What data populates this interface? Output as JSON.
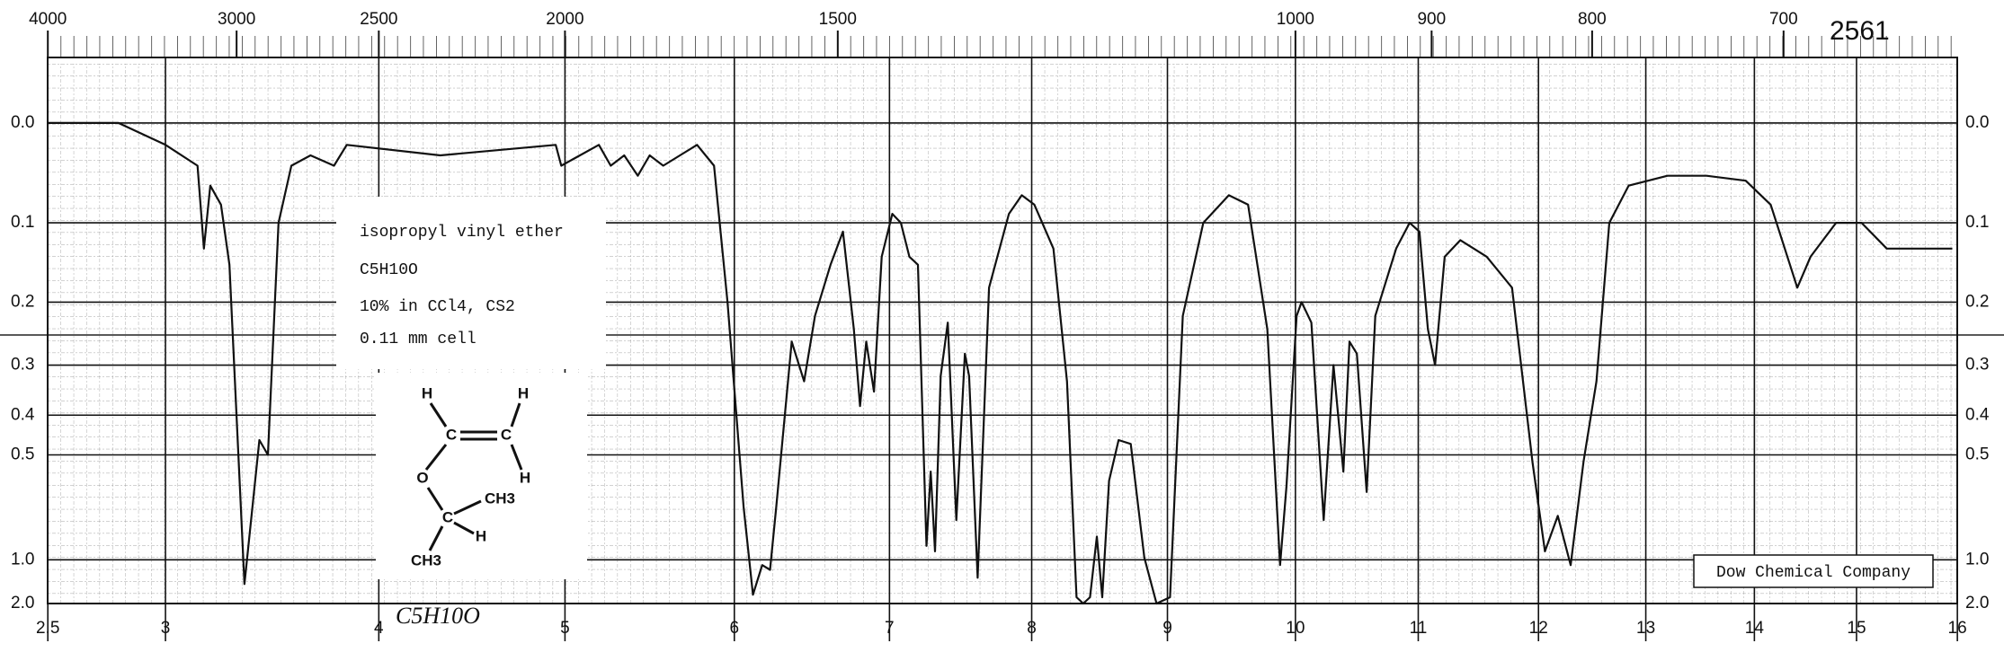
{
  "chart_data": {
    "type": "line",
    "chart_number": "2561",
    "sample": {
      "name": "isopropyl vinyl ether",
      "formula": "C5H10O",
      "solution": "10% in CCl4, CS2",
      "cell": "0.11 mm cell"
    },
    "source": "Dow Chemical Company",
    "handwritten_formula": "C5H10O",
    "structure_atoms": [
      "H",
      "H",
      "C",
      "C",
      "O",
      "H",
      "CH3",
      "C",
      "H",
      "CH3"
    ],
    "yscale": "absorbance",
    "x2scale": "wavenumber",
    "color": "#111111",
    "grid": true,
    "xlim": [
      2.5,
      16
    ],
    "xticks": [
      2.5,
      3,
      4,
      5,
      6,
      7,
      8,
      9,
      10,
      11,
      12,
      13,
      14,
      15,
      16
    ],
    "x2ticks": [
      4000,
      3000,
      2500,
      2000,
      1500,
      1000,
      900,
      800,
      700
    ],
    "ylim": [
      -0.05,
      2
    ],
    "yticks": [
      {
        "value": 0,
        "label": "0.0"
      },
      0.1,
      0.2,
      0.3,
      0.4,
      0.5,
      {
        "value": 1,
        "label": "1.0"
      },
      {
        "value": 2,
        "label": "2.0"
      }
    ],
    "x": [
      2.5,
      2.8,
      3.0,
      3.15,
      3.18,
      3.21,
      3.26,
      3.3,
      3.37,
      3.44,
      3.48,
      3.53,
      3.59,
      3.68,
      3.79,
      3.85,
      4.33,
      4.95,
      4.98,
      5.2,
      5.27,
      5.35,
      5.43,
      5.5,
      5.58,
      5.78,
      5.88,
      5.96,
      6.06,
      6.12,
      6.18,
      6.23,
      6.27,
      6.37,
      6.45,
      6.52,
      6.62,
      6.7,
      6.77,
      6.81,
      6.85,
      6.9,
      6.95,
      7.02,
      7.08,
      7.14,
      7.2,
      7.26,
      7.29,
      7.32,
      7.36,
      7.41,
      7.47,
      7.53,
      7.56,
      7.62,
      7.7,
      7.84,
      7.93,
      8.02,
      8.16,
      8.26,
      8.33,
      8.38,
      8.43,
      8.48,
      8.52,
      8.57,
      8.64,
      8.73,
      8.83,
      8.92,
      9.02,
      9.12,
      9.28,
      9.48,
      9.63,
      9.78,
      9.88,
      9.93,
      10.01,
      10.05,
      10.13,
      10.23,
      10.31,
      10.39,
      10.44,
      10.5,
      10.58,
      10.65,
      10.82,
      10.93,
      11.01,
      11.08,
      11.14,
      11.22,
      11.35,
      11.57,
      11.78,
      11.95,
      12.06,
      12.18,
      12.3,
      12.42,
      12.54,
      12.66,
      12.84,
      13.2,
      13.56,
      13.92,
      14.16,
      14.42,
      14.55,
      14.8,
      15.05,
      15.3,
      15.56,
      15.95
    ],
    "values": [
      0,
      0,
      0.02,
      0.04,
      0.13,
      0.06,
      0.08,
      0.15,
      1.3,
      0.46,
      0.5,
      0.1,
      0.04,
      0.03,
      0.04,
      0.02,
      0.03,
      0.02,
      0.04,
      0.02,
      0.04,
      0.03,
      0.05,
      0.03,
      0.04,
      0.02,
      0.04,
      0.2,
      0.68,
      1.55,
      1.05,
      1.1,
      0.68,
      0.26,
      0.33,
      0.22,
      0.15,
      0.11,
      0.24,
      0.38,
      0.26,
      0.35,
      0.14,
      0.09,
      0.1,
      0.14,
      0.15,
      0.89,
      0.55,
      0.93,
      0.32,
      0.23,
      0.74,
      0.28,
      0.32,
      1.2,
      0.18,
      0.09,
      0.07,
      0.08,
      0.13,
      0.33,
      1.64,
      2.0,
      1.64,
      0.83,
      1.64,
      0.58,
      0.46,
      0.47,
      0.98,
      2.0,
      1.64,
      0.22,
      0.1,
      0.07,
      0.08,
      0.24,
      1.05,
      0.6,
      0.22,
      0.2,
      0.23,
      0.74,
      0.3,
      0.55,
      0.26,
      0.28,
      0.62,
      0.22,
      0.13,
      0.1,
      0.11,
      0.24,
      0.3,
      0.14,
      0.12,
      0.14,
      0.18,
      0.52,
      0.93,
      0.72,
      1.05,
      0.52,
      0.33,
      0.1,
      0.06,
      0.05,
      0.05,
      0.055,
      0.08,
      0.18,
      0.14,
      0.1,
      0.1,
      0.13,
      0.13,
      0.13
    ]
  }
}
